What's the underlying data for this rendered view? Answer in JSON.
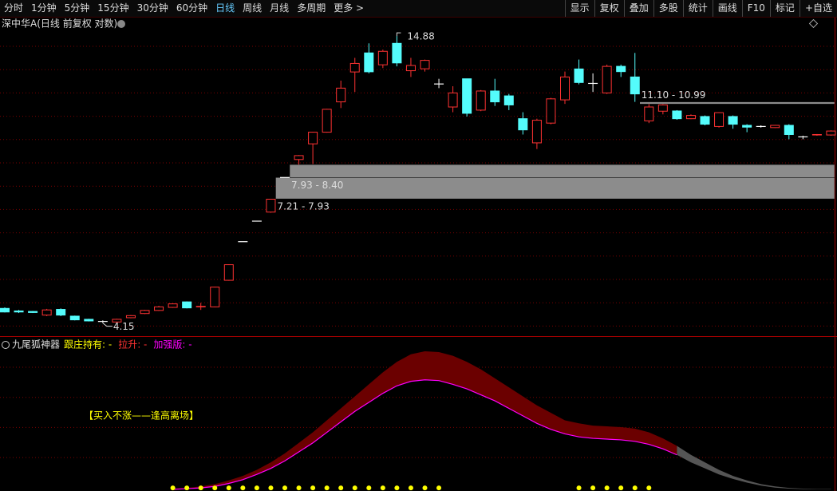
{
  "toolbar": {
    "periods": [
      "分时",
      "1分钟",
      "5分钟",
      "15分钟",
      "30分钟",
      "60分钟",
      "日线",
      "周线",
      "月线",
      "多周期",
      "更多 >"
    ],
    "selected": "日线",
    "tools": [
      "显示",
      "复权",
      "叠加",
      "多股",
      "统计",
      "画线",
      "F10",
      "标记",
      "+自选"
    ]
  },
  "chart_data": [
    {
      "type": "candlestick",
      "title": "深中华A(日线 前复权 对数)",
      "log_scale": true,
      "ylim": [
        3.93,
        15.15
      ],
      "up_color": "#ff3232",
      "down_color": "#54fcfc",
      "flat_color": "#ffffff",
      "open": [
        4.43,
        4.38,
        4.37,
        4.3,
        4.41,
        4.28,
        4.22,
        4.18,
        4.17,
        4.25,
        4.33,
        4.39,
        4.45,
        4.56,
        4.46,
        4.46,
        5.02,
        5.96,
        6.53,
        6.8,
        7.93,
        8.59,
        9.21,
        9.7,
        11.1,
        12.68,
        13.8,
        13.09,
        14.4,
        12.75,
        12.86,
        12.02,
        10.85,
        12.3,
        10.7,
        11.65,
        11.4,
        10.3,
        9.25,
        10.1,
        11.2,
        12.85,
        12.05,
        11.55,
        13.0,
        12.4,
        10.2,
        10.65,
        10.66,
        10.3,
        10.4,
        9.95,
        10.4,
        10.0,
        9.95,
        9.9,
        10.0,
        9.5,
        9.58,
        9.58
      ],
      "high": [
        4.45,
        4.4,
        4.38,
        4.42,
        4.43,
        4.29,
        4.23,
        4.2,
        4.23,
        4.3,
        4.4,
        4.48,
        4.53,
        4.57,
        4.54,
        4.88,
        5.39,
        5.96,
        6.53,
        7.21,
        7.93,
        8.76,
        9.72,
        10.76,
        12.2,
        13.5,
        14.4,
        14.0,
        14.88,
        13.5,
        13.4,
        12.3,
        11.9,
        12.3,
        11.7,
        12.3,
        11.5,
        10.6,
        10.3,
        11.3,
        12.7,
        13.4,
        12.6,
        13.1,
        13.1,
        13.8,
        10.99,
        10.99,
        10.7,
        10.5,
        10.45,
        10.6,
        10.45,
        10.05,
        10.0,
        10.02,
        10.05,
        9.55,
        9.62,
        9.78
      ],
      "low": [
        4.35,
        4.34,
        4.34,
        4.28,
        4.28,
        4.2,
        4.18,
        4.15,
        4.16,
        4.24,
        4.32,
        4.38,
        4.44,
        4.43,
        4.4,
        4.45,
        5.01,
        5.96,
        6.53,
        6.78,
        7.93,
        8.4,
        8.42,
        9.68,
        10.8,
        11.6,
        12.6,
        12.9,
        13.0,
        12.4,
        12.7,
        11.8,
        10.6,
        10.4,
        10.65,
        10.9,
        10.7,
        9.6,
        9.0,
        10.05,
        11.0,
        12.0,
        11.6,
        11.5,
        12.4,
        11.1,
        10.1,
        10.5,
        10.25,
        10.28,
        10.0,
        9.9,
        9.85,
        9.7,
        9.9,
        9.88,
        9.4,
        9.4,
        9.55,
        9.55
      ],
      "close": [
        4.36,
        4.36,
        4.35,
        4.4,
        4.3,
        4.21,
        4.19,
        4.18,
        4.22,
        4.29,
        4.39,
        4.46,
        4.52,
        4.44,
        4.47,
        4.87,
        5.38,
        5.96,
        6.53,
        7.2,
        7.93,
        8.74,
        9.7,
        10.74,
        11.8,
        13.17,
        12.69,
        13.9,
        13.2,
        13.05,
        13.35,
        12.02,
        11.55,
        10.55,
        11.65,
        11.1,
        10.95,
        9.8,
        10.23,
        11.25,
        12.4,
        12.1,
        12.05,
        13.0,
        12.7,
        11.5,
        10.85,
        10.95,
        10.3,
        10.45,
        10.05,
        10.58,
        10.05,
        9.92,
        9.95,
        10.0,
        9.6,
        9.5,
        9.6,
        9.75
      ],
      "gaps": [
        {
          "label": "7.21 - 7.93",
          "low": 7.21,
          "high": 7.93
        },
        {
          "label": "7.93 - 8.40",
          "low": 7.93,
          "high": 8.4
        },
        {
          "label": "11.10 - 10.99",
          "low": 10.99,
          "high": 11.1
        }
      ],
      "gap_color": "#8c8c8c"
    },
    {
      "type": "band",
      "title": "九尾狐神器",
      "ylim": [
        0,
        100
      ],
      "annotation": "【买入不涨——逢高离场】",
      "series": [
        {
          "name": "跟庄持有: -",
          "color": "#ffff00",
          "values": [
            null,
            null,
            null,
            null,
            null,
            null,
            null,
            null,
            null,
            null,
            null,
            null,
            1,
            1,
            1,
            1,
            1,
            1,
            1,
            1,
            1,
            1,
            1,
            1,
            1,
            1,
            1,
            1,
            1,
            1,
            1,
            1,
            null,
            null,
            null,
            null,
            null,
            null,
            null,
            null,
            null,
            1,
            1,
            1,
            1,
            1,
            1,
            null,
            null,
            null,
            null,
            null,
            null,
            null,
            null,
            null,
            null,
            null,
            null,
            null
          ]
        },
        {
          "name": "拉升: -",
          "color": "#6b0000",
          "values": [
            null,
            null,
            null,
            null,
            null,
            null,
            null,
            null,
            null,
            null,
            null,
            null,
            0.5,
            1,
            2,
            3.5,
            6,
            9,
            13,
            18,
            24,
            31,
            38,
            46,
            54,
            62,
            70,
            78,
            85,
            90,
            92,
            91.5,
            89,
            85,
            80,
            74,
            68,
            62,
            56,
            51,
            46,
            44,
            42.5,
            42,
            41.5,
            40.5,
            38,
            34,
            29,
            null,
            null,
            null,
            null,
            null,
            null,
            null,
            null,
            null,
            null,
            null
          ]
        },
        {
          "name": "加强版: -",
          "color": "#ff00ff",
          "values": [
            null,
            null,
            null,
            null,
            null,
            null,
            null,
            null,
            null,
            null,
            null,
            null,
            0,
            0.5,
            1,
            2,
            4,
            6.5,
            10,
            14,
            19,
            25,
            31,
            38,
            45,
            52,
            58,
            64,
            69,
            72,
            73,
            72.5,
            70,
            67,
            63,
            59,
            54,
            49,
            44,
            40,
            37,
            35,
            34,
            33.5,
            33,
            32,
            30,
            27,
            23,
            null,
            null,
            null,
            null,
            null,
            null,
            null,
            null,
            null,
            null,
            null
          ]
        }
      ],
      "extension": {
        "color": "#555555",
        "upper": [
          null,
          null,
          null,
          null,
          null,
          null,
          null,
          null,
          null,
          null,
          null,
          null,
          null,
          null,
          null,
          null,
          null,
          null,
          null,
          null,
          null,
          null,
          null,
          null,
          null,
          null,
          null,
          null,
          null,
          null,
          null,
          null,
          null,
          null,
          null,
          null,
          null,
          null,
          null,
          null,
          null,
          null,
          null,
          null,
          null,
          null,
          null,
          null,
          29,
          23,
          18,
          13,
          9,
          6,
          3.5,
          2,
          1,
          0.5,
          0.3,
          0.2
        ],
        "lower": [
          null,
          null,
          null,
          null,
          null,
          null,
          null,
          null,
          null,
          null,
          null,
          null,
          null,
          null,
          null,
          null,
          null,
          null,
          null,
          null,
          null,
          null,
          null,
          null,
          null,
          null,
          null,
          null,
          null,
          null,
          null,
          null,
          null,
          null,
          null,
          null,
          null,
          null,
          null,
          null,
          null,
          null,
          null,
          null,
          null,
          null,
          null,
          null,
          23,
          18,
          14,
          10,
          7,
          4.5,
          2.5,
          1.2,
          0.5,
          0.2,
          0.1,
          0
        ]
      }
    }
  ]
}
